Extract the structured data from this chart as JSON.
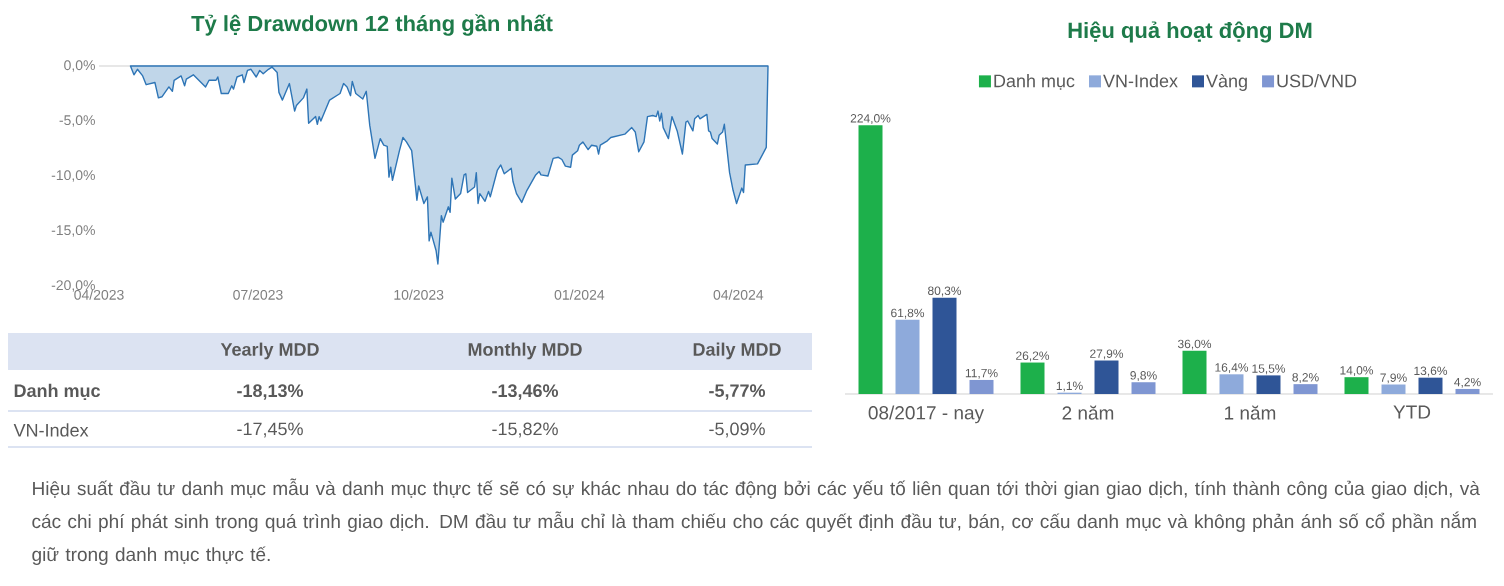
{
  "chart_data": [
    {
      "type": "area",
      "title": "Tỷ lệ Drawdown 12 tháng gần nhất",
      "color": "#2e75b6",
      "xlim": [
        "2023-04-01",
        "2024-04-18"
      ],
      "ylim": [
        -20,
        0
      ],
      "xticks": [
        {
          "value": "2023-04-01",
          "label": "04/2023"
        },
        {
          "value": "2023-07-01",
          "label": "07/2023"
        },
        {
          "value": "2023-10-01",
          "label": "10/2023"
        },
        {
          "value": "2024-01-01",
          "label": "01/2024"
        },
        {
          "value": "2024-04-01",
          "label": "04/2024"
        }
      ],
      "yticks": [
        {
          "value": 0,
          "label": "0,0%"
        },
        {
          "value": -5,
          "label": "-5,0%"
        },
        {
          "value": -10,
          "label": "-10,0%"
        },
        {
          "value": -15,
          "label": "-15,0%"
        },
        {
          "value": -20,
          "label": "-20,0%"
        }
      ],
      "x": [
        "2023-04-19",
        "2023-04-21",
        "2023-04-23",
        "2023-04-26",
        "2023-04-28",
        "2023-05-03",
        "2023-05-05",
        "2023-05-07",
        "2023-05-11",
        "2023-05-13",
        "2023-05-14",
        "2023-05-18",
        "2023-05-20",
        "2023-05-21",
        "2023-05-25",
        "2023-06-01",
        "2023-06-03",
        "2023-06-07",
        "2023-06-08",
        "2023-06-10",
        "2023-06-14",
        "2023-06-16",
        "2023-06-17",
        "2023-06-19",
        "2023-06-22",
        "2023-06-23",
        "2023-06-25",
        "2023-06-27",
        "2023-06-30",
        "2023-07-02",
        "2023-07-04",
        "2023-07-07",
        "2023-07-09",
        "2023-07-12",
        "2023-07-13",
        "2023-07-15",
        "2023-07-19",
        "2023-07-22",
        "2023-07-23",
        "2023-07-27",
        "2023-07-29",
        "2023-07-30",
        "2023-08-03",
        "2023-08-04",
        "2023-08-05",
        "2023-08-06",
        "2023-08-11",
        "2023-08-17",
        "2023-08-19",
        "2023-08-21",
        "2023-08-23",
        "2023-08-24",
        "2023-08-26",
        "2023-08-30",
        "2023-09-01",
        "2023-09-03",
        "2023-09-06",
        "2023-09-09",
        "2023-09-11",
        "2023-09-13",
        "2023-09-14",
        "2023-09-15",
        "2023-09-16",
        "2023-09-20",
        "2023-09-22",
        "2023-09-24",
        "2023-09-27",
        "2023-09-30",
        "2023-10-01",
        "2023-10-04",
        "2023-10-06",
        "2023-10-07",
        "2023-10-08",
        "2023-10-11",
        "2023-10-12",
        "2023-10-14",
        "2023-10-15",
        "2023-10-18",
        "2023-10-19",
        "2023-10-20",
        "2023-10-22",
        "2023-10-25",
        "2023-10-27",
        "2023-10-28",
        "2023-10-29",
        "2023-11-02",
        "2023-11-03",
        "2023-11-04",
        "2023-11-05",
        "2023-11-08",
        "2023-11-10",
        "2023-11-11",
        "2023-11-15",
        "2023-11-17",
        "2023-11-19",
        "2023-11-23",
        "2023-11-24",
        "2023-11-26",
        "2023-11-29",
        "2023-12-02",
        "2023-12-07",
        "2023-12-09",
        "2023-12-10",
        "2023-12-14",
        "2023-12-17",
        "2023-12-20",
        "2023-12-22",
        "2023-12-24",
        "2023-12-27",
        "2023-12-28",
        "2023-12-31",
        "2024-01-01",
        "2024-01-03",
        "2024-01-06",
        "2024-01-08",
        "2024-01-11",
        "2024-01-12",
        "2024-01-13",
        "2024-01-17",
        "2024-01-19",
        "2024-01-27",
        "2024-01-31",
        "2024-02-02",
        "2024-02-04",
        "2024-02-07",
        "2024-02-09",
        "2024-02-12",
        "2024-02-14",
        "2024-02-15",
        "2024-02-16",
        "2024-02-17",
        "2024-02-18",
        "2024-02-21",
        "2024-02-23",
        "2024-02-26",
        "2024-02-29",
        "2024-03-02",
        "2024-03-03",
        "2024-03-06",
        "2024-03-07",
        "2024-03-09",
        "2024-03-10",
        "2024-03-14",
        "2024-03-15",
        "2024-03-16",
        "2024-03-17",
        "2024-03-20",
        "2024-03-21",
        "2024-03-23",
        "2024-03-24",
        "2024-03-25",
        "2024-03-27",
        "2024-03-29",
        "2024-03-31",
        "2024-04-03",
        "2024-04-04",
        "2024-04-05",
        "2024-04-12",
        "2024-04-17",
        "2024-04-18"
      ],
      "values": [
        0,
        -0.8,
        -0.3,
        -0.9,
        -1.7,
        -1.5,
        -2.9,
        -2.8,
        -1.9,
        -2.3,
        -1.3,
        -0.9,
        -1.8,
        -1.2,
        -0.8,
        -1.9,
        -1.3,
        -1.3,
        -1.0,
        -2.5,
        -2.5,
        -1.8,
        -2.1,
        -1.0,
        -0.8,
        -1.5,
        -0.4,
        -0.3,
        -1.0,
        -0.4,
        -0.7,
        -0.3,
        -0.1,
        -0.6,
        -2.4,
        -3.1,
        -1.6,
        -4.1,
        -3.6,
        -2.9,
        -2.1,
        -5.2,
        -4.6,
        -5.3,
        -4.6,
        -5.0,
        -3.1,
        -2.5,
        -1.6,
        -1.9,
        -2.7,
        -1.4,
        -2.5,
        -3.0,
        -2.3,
        -5.4,
        -8.4,
        -6.6,
        -7.2,
        -7.3,
        -10.1,
        -9.2,
        -10.4,
        -7.7,
        -6.5,
        -6.9,
        -7.7,
        -12.2,
        -10.9,
        -12.5,
        -11.9,
        -15.9,
        -15.1,
        -16.8,
        -18.0,
        -13.6,
        -14.2,
        -12.8,
        -13.3,
        -10.2,
        -12.1,
        -11.6,
        -9.9,
        -9.8,
        -11.5,
        -11.0,
        -9.7,
        -12.5,
        -11.6,
        -12.3,
        -11.4,
        -11.9,
        -9.5,
        -9.0,
        -9.8,
        -9.3,
        -10.5,
        -11.6,
        -12.4,
        -11.3,
        -9.9,
        -9.6,
        -9.9,
        -10.0,
        -8.4,
        -8.3,
        -8.5,
        -9.1,
        -9.2,
        -8.1,
        -7.7,
        -7.2,
        -6.9,
        -7.6,
        -7.2,
        -7.3,
        -8.0,
        -7.2,
        -6.8,
        -6.5,
        -6.2,
        -5.6,
        -6.0,
        -7.8,
        -6.9,
        -4.6,
        -4.5,
        -4.6,
        -4.1,
        -5.0,
        -4.3,
        -5.6,
        -6.6,
        -4.6,
        -5.9,
        -8.0,
        -5.1,
        -5.0,
        -5.9,
        -4.8,
        -4.5,
        -4.8,
        -4.4,
        -5.9,
        -6.0,
        -6.6,
        -7.1,
        -6.3,
        -6.0,
        -5.3,
        -6.8,
        -9.7,
        -11.3,
        -12.5,
        -11.1,
        -11.5,
        -9.0,
        -8.9,
        -7.4,
        0
      ]
    },
    {
      "type": "other",
      "categories": [
        "Yearly MDD",
        "Monthly MDD",
        "Daily MDD"
      ],
      "y_categories": [
        "Danh mục",
        "VN-Index"
      ],
      "cell_labels": [
        [
          "-18,13%",
          "-13,46%",
          "-5,77%"
        ],
        [
          "-17,45%",
          "-15,82%",
          "-5,09%"
        ]
      ],
      "annotations": [
        "Hiệu suất đầu tư danh mục mẫu và danh mục thực tế sẽ có sự khác nhau do tác động bởi các yếu tố liên quan tới thời gian giao dịch, tính thành công của giao dịch, và các chi phí phát sinh trong quá trình giao dịch. DM đầu tư mẫu chỉ là tham chiếu cho các quyết định đầu tư, bán, cơ cấu danh mục và không phản ánh số cổ phần nắm giữ trong danh mục thực tế."
      ]
    },
    {
      "type": "bar",
      "title": "Hiệu quả hoạt động DM",
      "categories": [
        "08/2017 - nay",
        "2 năm",
        "1 năm",
        "YTD"
      ],
      "legend": "top",
      "tick_labels": "x",
      "series": [
        {
          "name": "Danh mục",
          "color": "#1db04b",
          "values": [
            224.0,
            26.2,
            36.0,
            14.0
          ],
          "value_labels": [
            "224,0%",
            "26,2%",
            "36,0%",
            "14,0%"
          ]
        },
        {
          "name": "VN-Index",
          "color": "#8eaadb",
          "values": [
            61.8,
            1.1,
            16.4,
            7.9
          ],
          "value_labels": [
            "61,8%",
            "1,1%",
            "16,4%",
            "7,9%"
          ]
        },
        {
          "name": "Vàng",
          "color": "#2f5597",
          "values": [
            80.3,
            27.9,
            15.5,
            13.6
          ],
          "value_labels": [
            "80,3%",
            "27,9%",
            "15,5%",
            "13,6%"
          ]
        },
        {
          "name": "USD/VND",
          "color": "#7f96d2",
          "values": [
            11.7,
            9.8,
            8.2,
            4.2
          ],
          "value_labels": [
            "11,7%",
            "9,8%",
            "8,2%",
            "4,2%"
          ]
        }
      ]
    }
  ]
}
